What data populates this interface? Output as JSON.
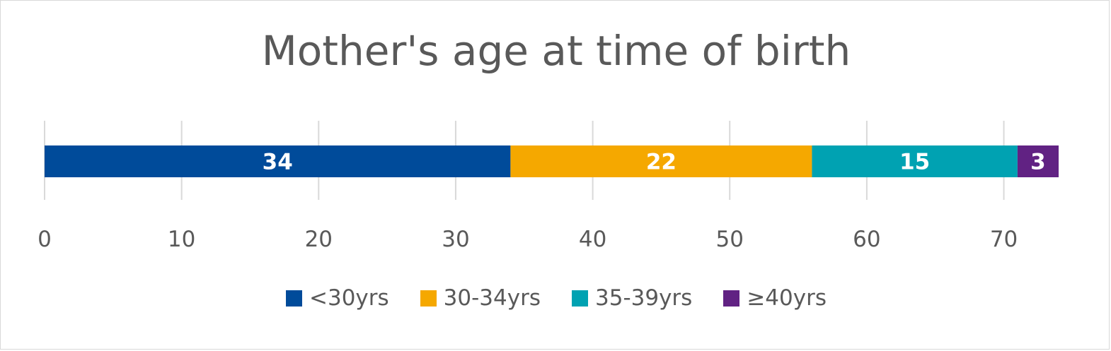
{
  "chart_data": {
    "type": "bar",
    "orientation": "horizontal",
    "stacked": true,
    "title": "Mother's age at time of birth",
    "xlim": [
      0,
      74
    ],
    "xticks": [
      0,
      10,
      20,
      30,
      40,
      50,
      60,
      70
    ],
    "tick_labels": [
      "0",
      "10",
      "20",
      "30",
      "40",
      "50",
      "60",
      "70"
    ],
    "grid": true,
    "legend_position": "bottom",
    "series": [
      {
        "name": "<30yrs",
        "value": 34,
        "label": "34",
        "color": "#004b9a"
      },
      {
        "name": "30-34yrs",
        "value": 22,
        "label": "22",
        "color": "#f5a800"
      },
      {
        "name": "35-39yrs",
        "value": 15,
        "label": "15",
        "color": "#00a2b2"
      },
      {
        "name": "≥40yrs",
        "value": 3,
        "label": "3",
        "color": "#612283"
      }
    ]
  }
}
